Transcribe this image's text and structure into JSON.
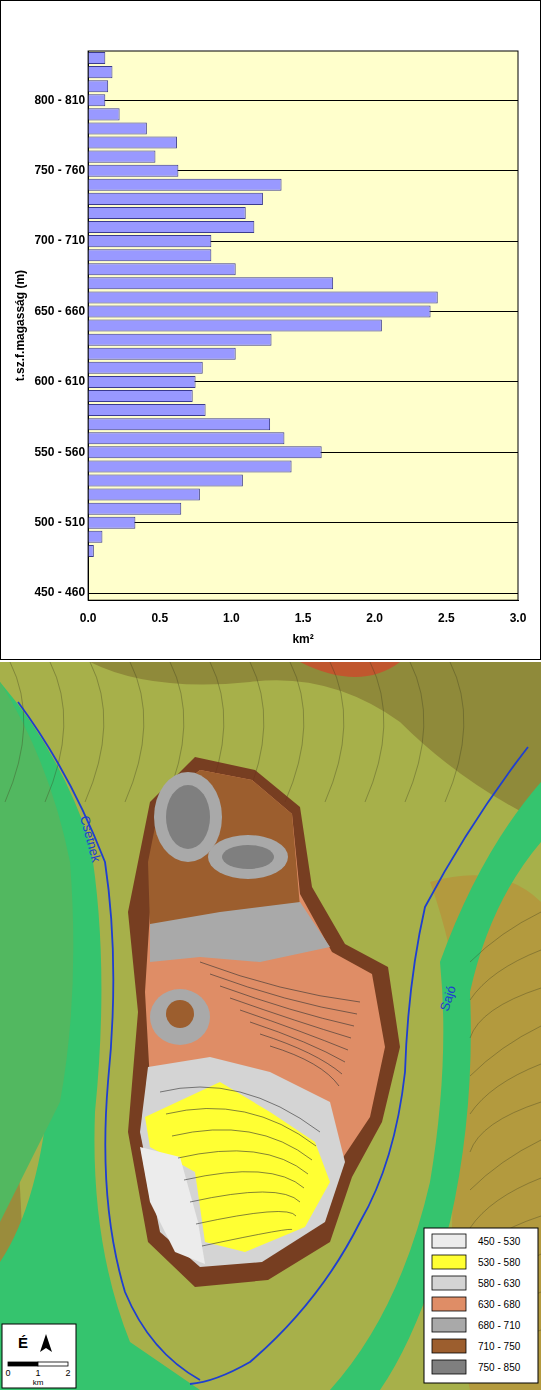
{
  "chart_data": {
    "type": "bar",
    "orientation": "horizontal",
    "xlabel": "km²",
    "ylabel": "t.sz.f.magasság (m)",
    "categories": [
      "450 - 460",
      null,
      null,
      null,
      null,
      "500 - 510",
      null,
      null,
      null,
      null,
      "550 - 560",
      null,
      null,
      null,
      null,
      "600 - 610",
      null,
      null,
      null,
      null,
      "650 - 660",
      null,
      null,
      null,
      null,
      "700 - 710",
      null,
      null,
      null,
      null,
      "750 - 760",
      null,
      null,
      null,
      null,
      "800 - 810",
      null,
      null,
      null
    ],
    "values": [
      0,
      0,
      0,
      0.04,
      0.1,
      0.33,
      0.65,
      0.78,
      1.08,
      1.42,
      1.63,
      1.37,
      1.27,
      0.82,
      0.73,
      0.75,
      0.8,
      1.03,
      1.28,
      2.05,
      2.39,
      2.44,
      1.71,
      1.03,
      0.86,
      0.86,
      1.16,
      1.1,
      1.22,
      1.35,
      0.63,
      0.47,
      0.62,
      0.41,
      0.22,
      0.12,
      0.14,
      0.17,
      0.12
    ],
    "color": "#9999ff",
    "xlim": [
      0,
      3
    ],
    "xticks": [
      {
        "value": 0,
        "label": "0.0"
      },
      {
        "value": 0.5,
        "label": "0.5"
      },
      {
        "value": 1,
        "label": "1.0"
      },
      {
        "value": 1.5,
        "label": "1.5"
      },
      {
        "value": 2,
        "label": "2.0"
      },
      {
        "value": 2.5,
        "label": "2.5"
      },
      {
        "value": 3,
        "label": "3.0"
      }
    ],
    "grid": true
  },
  "map": {
    "rivers": [
      "Csetnek",
      "Sajó"
    ],
    "legend": [
      {
        "label": "450 - 530",
        "color": "#ececec"
      },
      {
        "label": "530 - 580",
        "color": "#ffff33"
      },
      {
        "label": "580 - 630",
        "color": "#d4d4d4"
      },
      {
        "label": "630 - 680",
        "color": "#df8d66"
      },
      {
        "label": "680 - 710",
        "color": "#a9a9a9"
      },
      {
        "label": "710 - 750",
        "color": "#9c5e2e"
      },
      {
        "label": "750 - 850",
        "color": "#7f7f7f"
      }
    ],
    "north": "É",
    "scale_labels": [
      0,
      1,
      2
    ],
    "scale_unit": "km"
  }
}
